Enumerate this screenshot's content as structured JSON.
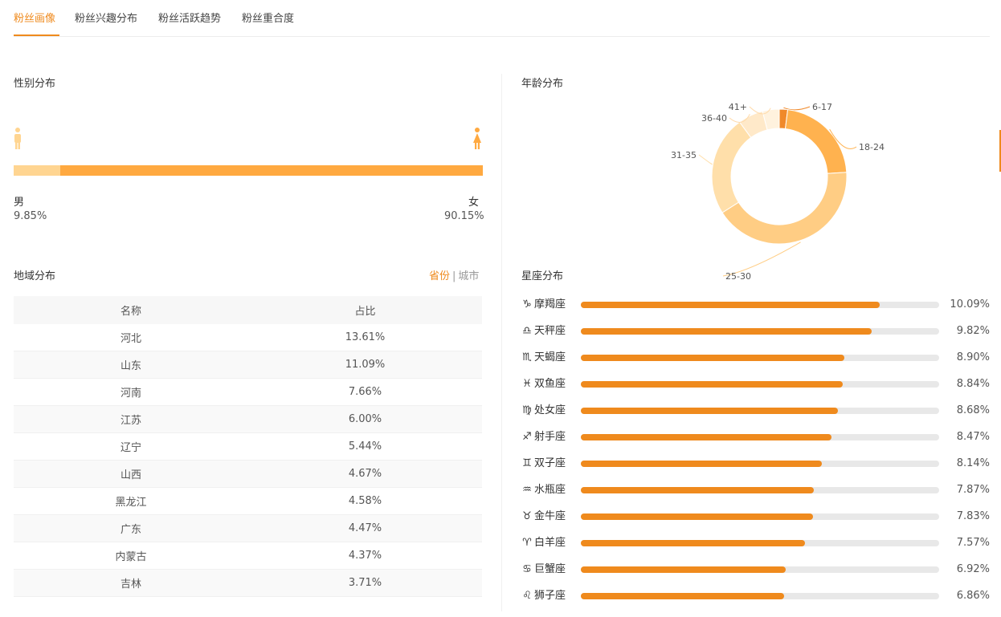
{
  "tabs": [
    {
      "label": "粉丝画像",
      "active": true
    },
    {
      "label": "粉丝兴趣分布",
      "active": false
    },
    {
      "label": "粉丝活跃趋势",
      "active": false
    },
    {
      "label": "粉丝重合度",
      "active": false
    }
  ],
  "gender": {
    "title": "性别分布",
    "male_label": "男",
    "male_pct": "9.85%",
    "male_value": 9.85,
    "female_label": "女",
    "female_pct": "90.15%",
    "female_value": 90.15
  },
  "region": {
    "title": "地域分布",
    "toggle_province": "省份",
    "toggle_sep": "|",
    "toggle_city": "城市",
    "headers": [
      "名称",
      "占比"
    ],
    "rows": [
      {
        "name": "河北",
        "pct": "13.61%"
      },
      {
        "name": "山东",
        "pct": "11.09%"
      },
      {
        "name": "河南",
        "pct": "7.66%"
      },
      {
        "name": "江苏",
        "pct": "6.00%"
      },
      {
        "name": "辽宁",
        "pct": "5.44%"
      },
      {
        "name": "山西",
        "pct": "4.67%"
      },
      {
        "name": "黑龙江",
        "pct": "4.58%"
      },
      {
        "name": "广东",
        "pct": "4.47%"
      },
      {
        "name": "内蒙古",
        "pct": "4.37%"
      },
      {
        "name": "吉林",
        "pct": "3.71%"
      }
    ]
  },
  "age": {
    "title": "年龄分布"
  },
  "zodiac": {
    "title": "星座分布",
    "items": [
      {
        "icon": "♑",
        "name": "摩羯座",
        "pct": "10.09%",
        "value": 10.09
      },
      {
        "icon": "♎",
        "name": "天秤座",
        "pct": "9.82%",
        "value": 9.82
      },
      {
        "icon": "♏",
        "name": "天蝎座",
        "pct": "8.90%",
        "value": 8.9
      },
      {
        "icon": "♓",
        "name": "双鱼座",
        "pct": "8.84%",
        "value": 8.84
      },
      {
        "icon": "♍",
        "name": "处女座",
        "pct": "8.68%",
        "value": 8.68
      },
      {
        "icon": "♐",
        "name": "射手座",
        "pct": "8.47%",
        "value": 8.47
      },
      {
        "icon": "♊",
        "name": "双子座",
        "pct": "8.14%",
        "value": 8.14
      },
      {
        "icon": "♒",
        "name": "水瓶座",
        "pct": "7.87%",
        "value": 7.87
      },
      {
        "icon": "♉",
        "name": "金牛座",
        "pct": "7.83%",
        "value": 7.83
      },
      {
        "icon": "♈",
        "name": "白羊座",
        "pct": "7.57%",
        "value": 7.57
      },
      {
        "icon": "♋",
        "name": "巨蟹座",
        "pct": "6.92%",
        "value": 6.92
      },
      {
        "icon": "♌",
        "name": "狮子座",
        "pct": "6.86%",
        "value": 6.86
      }
    ],
    "scale_max": 12.1
  },
  "colors": {
    "accent": "#ef8a1d",
    "male_bar": "#ffd591",
    "female_bar": "#ffa940"
  },
  "chart_data": {
    "type": "pie",
    "title": "年龄分布",
    "categories": [
      "6-17",
      "18-24",
      "25-30",
      "31-35",
      "36-40",
      "41+"
    ],
    "values": [
      2,
      22,
      42,
      24,
      6,
      4
    ],
    "colors": [
      "#f0892a",
      "#ffb24f",
      "#ffcd84",
      "#ffdfaa",
      "#ffe9c9",
      "#fff2de"
    ]
  }
}
